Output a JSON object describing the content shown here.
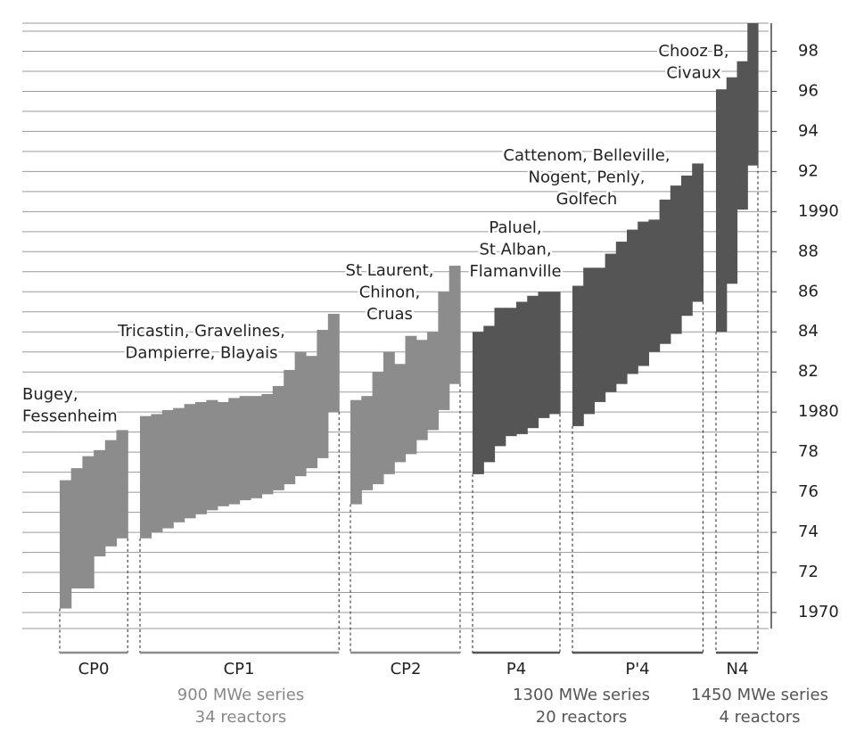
{
  "chart_data": {
    "type": "range-step",
    "ylim": [
      1969.2,
      1999.4
    ],
    "yticks": [
      1970,
      {
        "value": 1972,
        "label": "72"
      },
      {
        "value": 1974,
        "label": "74"
      },
      {
        "value": 1976,
        "label": "76"
      },
      {
        "value": 1978,
        "label": "78"
      },
      1980,
      {
        "value": 1982,
        "label": "82"
      },
      {
        "value": 1984,
        "label": "84"
      },
      {
        "value": 1986,
        "label": "86"
      },
      {
        "value": 1988,
        "label": "88"
      },
      1990,
      {
        "value": 1992,
        "label": "92"
      },
      {
        "value": 1994,
        "label": "94"
      },
      {
        "value": 1996,
        "label": "96"
      },
      {
        "value": 1998,
        "label": "98"
      }
    ],
    "ygrid": [
      1970,
      1971,
      1972,
      1973,
      1974,
      1975,
      1976,
      1977,
      1978,
      1979,
      1980,
      1981,
      1982,
      1983,
      1984,
      1985,
      1986,
      1987,
      1988,
      1989,
      1990,
      1991,
      1992,
      1993,
      1994,
      1995,
      1996,
      1997,
      1998,
      1999
    ],
    "grid": true,
    "groups": [
      {
        "name": "CP0",
        "color": "#8c8c8c",
        "start": [
          1970.2,
          1971.2,
          1971.2,
          1972.8,
          1973.3,
          1973.7
        ],
        "end": [
          1976.6,
          1977.2,
          1977.8,
          1978.1,
          1978.6,
          1979.1
        ]
      },
      {
        "name": "CP1",
        "color": "#8c8c8c",
        "start": [
          1973.7,
          1974.0,
          1974.2,
          1974.5,
          1974.7,
          1974.9,
          1975.1,
          1975.3,
          1975.4,
          1975.6,
          1975.7,
          1975.9,
          1976.1,
          1976.4,
          1976.8,
          1977.2,
          1977.7,
          1980.0
        ],
        "end": [
          1979.8,
          1979.9,
          1980.1,
          1980.2,
          1980.4,
          1980.5,
          1980.6,
          1980.5,
          1980.7,
          1980.8,
          1980.8,
          1980.9,
          1981.3,
          1982.1,
          1983.0,
          1982.8,
          1984.1,
          1984.9
        ]
      },
      {
        "name": "CP2",
        "color": "#8c8c8c",
        "start": [
          1975.4,
          1976.1,
          1976.4,
          1976.9,
          1977.5,
          1977.9,
          1978.6,
          1979.1,
          1980.1,
          1981.4
        ],
        "end": [
          1980.6,
          1980.8,
          1982.0,
          1983.0,
          1982.4,
          1983.8,
          1983.6,
          1984.0,
          1986.0,
          1987.3
        ]
      },
      {
        "name": "P4",
        "color": "#555555",
        "start": [
          1976.9,
          1977.5,
          1978.3,
          1978.8,
          1978.9,
          1979.2,
          1979.7,
          1979.9
        ],
        "end": [
          1984.0,
          1984.3,
          1985.2,
          1985.2,
          1985.5,
          1985.8,
          1986.0,
          1986.0
        ]
      },
      {
        "name": "P'4",
        "color": "#555555",
        "start": [
          1979.3,
          1979.9,
          1980.5,
          1981.0,
          1981.4,
          1981.9,
          1982.3,
          1983.0,
          1983.4,
          1983.9,
          1984.8,
          1985.5
        ],
        "end": [
          1986.3,
          1987.2,
          1987.2,
          1987.9,
          1988.5,
          1989.1,
          1989.5,
          1989.6,
          1990.6,
          1991.3,
          1991.8,
          1992.4
        ]
      },
      {
        "name": "N4",
        "color": "#555555",
        "start": [
          1984.0,
          1986.4,
          1990.1,
          1992.3
        ],
        "end": [
          1996.1,
          1996.7,
          1997.5,
          1999.4
        ]
      }
    ],
    "families": [
      {
        "label": "900 MWe series",
        "reactors": "34 reactors"
      },
      {
        "label": "1300 MWe series",
        "reactors": "20 reactors"
      },
      {
        "label": "1450 MWe series",
        "reactors": "4 reactors"
      }
    ],
    "annotations": [
      {
        "lines": [
          "Bugey,",
          "Fessenheim"
        ]
      },
      {
        "lines": [
          "Tricastin, Gravelines,",
          "Dampierre, Blayais"
        ]
      },
      {
        "lines": [
          "St Laurent,",
          "Chinon,",
          "Cruas"
        ]
      },
      {
        "lines": [
          "Paluel,",
          "St Alban,",
          "Flamanville"
        ]
      },
      {
        "lines": [
          "Cattenom, Belleville,",
          "Nogent, Penly,",
          "Golfech"
        ]
      },
      {
        "lines": [
          "Chooz B,",
          "Civaux"
        ]
      }
    ]
  }
}
